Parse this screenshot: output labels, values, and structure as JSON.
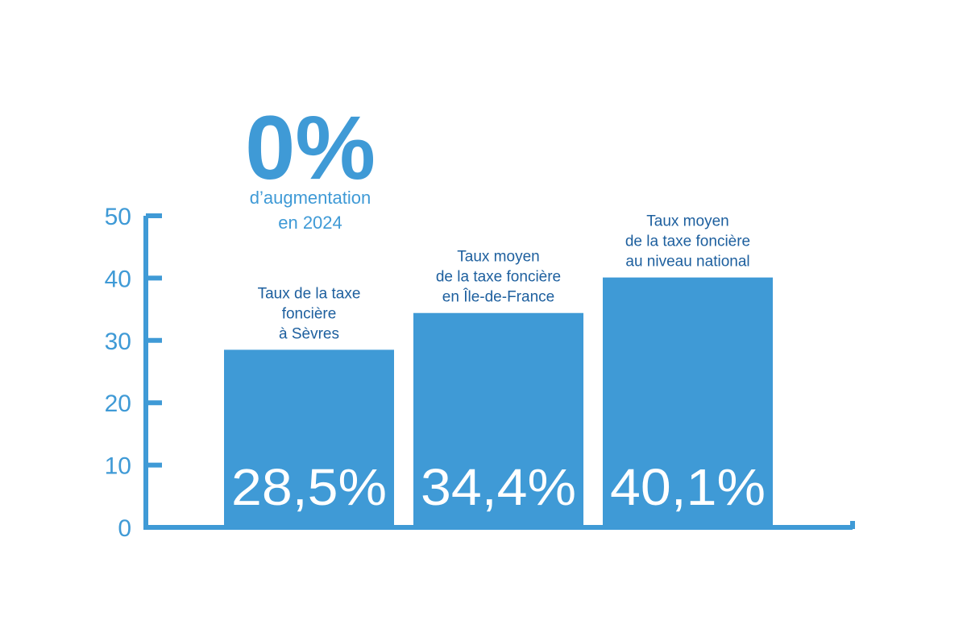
{
  "highlight": {
    "value": "0%",
    "line1": "d’augmentation",
    "line2": "en 2024"
  },
  "chart_data": {
    "type": "bar",
    "categories": [
      [
        "Taux de la taxe",
        "foncière",
        "à Sèvres"
      ],
      [
        "Taux moyen",
        "de la taxe foncière",
        "en Île-de-France"
      ],
      [
        "Taux moyen",
        "de la taxe foncière",
        "au niveau national"
      ]
    ],
    "values": [
      28.5,
      34.4,
      40.1
    ],
    "value_labels": [
      "28,5%",
      "34,4%",
      "40,1%"
    ],
    "yticks": [
      "0",
      "10",
      "20",
      "30",
      "40",
      "50"
    ],
    "ylim": [
      0,
      50
    ],
    "grid": false,
    "colors": {
      "bar": "#3f9ad6",
      "axis": "#3f9ad6",
      "tick_text": "#3f9ad6",
      "label_text": "#1d5f9e",
      "value_text": "#ffffff"
    }
  }
}
